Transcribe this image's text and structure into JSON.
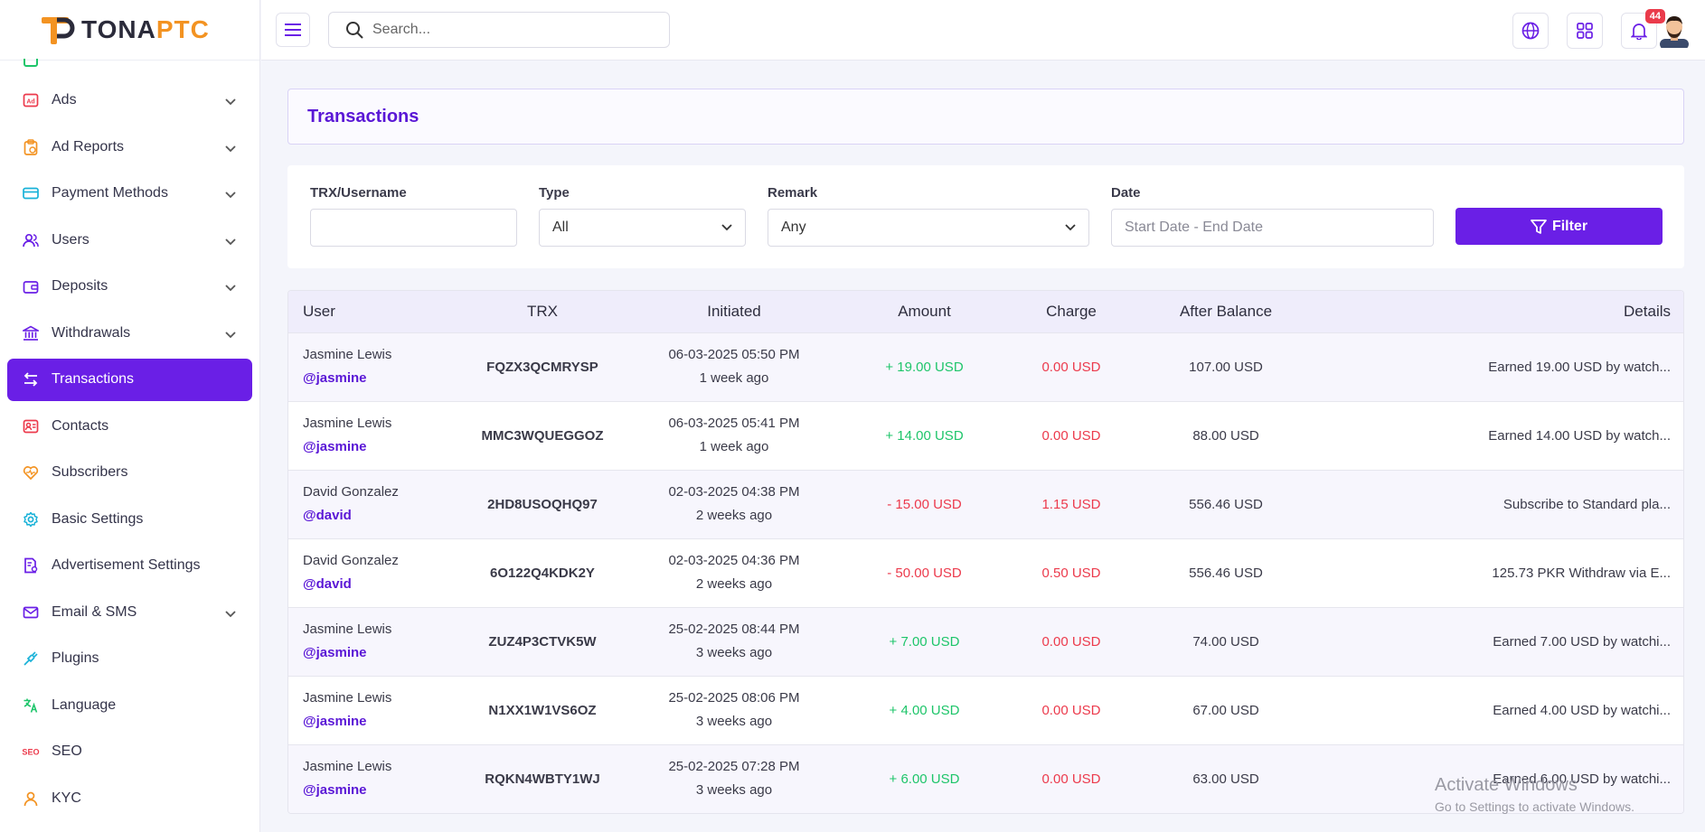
{
  "brand": {
    "part1": "TONA",
    "part2": "PTC",
    "accent": "#f39322"
  },
  "sidebar": {
    "items": [
      {
        "label": "Ads",
        "icon": "ad-icon",
        "color": "#ec3a4c",
        "chevron": true
      },
      {
        "label": "Ad Reports",
        "icon": "clipboard-icon",
        "color": "#f39322",
        "chevron": true
      },
      {
        "label": "Payment Methods",
        "icon": "credit-card-icon",
        "color": "#1ab2d8",
        "chevron": true
      },
      {
        "label": "Users",
        "icon": "users-icon",
        "color": "#6a1fe6",
        "chevron": true
      },
      {
        "label": "Deposits",
        "icon": "wallet-icon",
        "color": "#6a1fe6",
        "chevron": true
      },
      {
        "label": "Withdrawals",
        "icon": "bank-icon",
        "color": "#6a1fe6",
        "chevron": true
      },
      {
        "label": "Transactions",
        "icon": "arrows-icon",
        "color": "#ffffff",
        "chevron": false,
        "active": true
      },
      {
        "label": "Contacts",
        "icon": "contact-icon",
        "color": "#ec3a4c",
        "chevron": false
      },
      {
        "label": "Subscribers",
        "icon": "heart-icon",
        "color": "#f39322",
        "chevron": false
      },
      {
        "label": "Basic Settings",
        "icon": "gear-icon",
        "color": "#1ab2d8",
        "chevron": false
      },
      {
        "label": "Advertisement Settings",
        "icon": "doc-settings-icon",
        "color": "#6a1fe6",
        "chevron": false
      },
      {
        "label": "Email & SMS",
        "icon": "mail-icon",
        "color": "#6a1fe6",
        "chevron": true
      },
      {
        "label": "Plugins",
        "icon": "plug-icon",
        "color": "#1ab2d8",
        "chevron": false
      },
      {
        "label": "Language",
        "icon": "language-icon",
        "color": "#1ec56a",
        "chevron": false
      },
      {
        "label": "SEO",
        "icon": "seo-icon",
        "color": "#ec3a4c",
        "chevron": false
      },
      {
        "label": "KYC",
        "icon": "kyc-icon",
        "color": "#f39322",
        "chevron": false
      }
    ]
  },
  "topbar": {
    "search_placeholder": "Search...",
    "notification_count": "44"
  },
  "page": {
    "title": "Transactions"
  },
  "filters": {
    "trx_label": "TRX/Username",
    "trx_value": "",
    "type_label": "Type",
    "type_value": "All",
    "remark_label": "Remark",
    "remark_value": "Any",
    "date_label": "Date",
    "date_placeholder": "Start Date - End Date",
    "filter_button": "Filter"
  },
  "table": {
    "headers": [
      "User",
      "TRX",
      "Initiated",
      "Amount",
      "Charge",
      "After Balance",
      "Details"
    ],
    "rows": [
      {
        "name": "Jasmine Lewis",
        "username": "@jasmine",
        "trx": "FQZX3QCMRYSP",
        "date": "06-03-2025 05:50 PM",
        "ago": "1 week ago",
        "amount": "+ 19.00 USD",
        "amount_type": "pos",
        "charge": "0.00 USD",
        "balance": "107.00 USD",
        "details": "Earned 19.00 USD by watch..."
      },
      {
        "name": "Jasmine Lewis",
        "username": "@jasmine",
        "trx": "MMC3WQUEGGOZ",
        "date": "06-03-2025 05:41 PM",
        "ago": "1 week ago",
        "amount": "+ 14.00 USD",
        "amount_type": "pos",
        "charge": "0.00 USD",
        "balance": "88.00 USD",
        "details": "Earned 14.00 USD by watch..."
      },
      {
        "name": "David Gonzalez",
        "username": "@david",
        "trx": "2HD8USOQHQ97",
        "date": "02-03-2025 04:38 PM",
        "ago": "2 weeks ago",
        "amount": "- 15.00 USD",
        "amount_type": "neg",
        "charge": "1.15 USD",
        "balance": "556.46 USD",
        "details": "Subscribe to Standard pla..."
      },
      {
        "name": "David Gonzalez",
        "username": "@david",
        "trx": "6O122Q4KDK2Y",
        "date": "02-03-2025 04:36 PM",
        "ago": "2 weeks ago",
        "amount": "- 50.00 USD",
        "amount_type": "neg",
        "charge": "0.50 USD",
        "balance": "556.46 USD",
        "details": "125.73 PKR Withdraw via E..."
      },
      {
        "name": "Jasmine Lewis",
        "username": "@jasmine",
        "trx": "ZUZ4P3CTVK5W",
        "date": "25-02-2025 08:44 PM",
        "ago": "3 weeks ago",
        "amount": "+ 7.00 USD",
        "amount_type": "pos",
        "charge": "0.00 USD",
        "balance": "74.00 USD",
        "details": "Earned 7.00 USD by watchi..."
      },
      {
        "name": "Jasmine Lewis",
        "username": "@jasmine",
        "trx": "N1XX1W1VS6OZ",
        "date": "25-02-2025 08:06 PM",
        "ago": "3 weeks ago",
        "amount": "+ 4.00 USD",
        "amount_type": "pos",
        "charge": "0.00 USD",
        "balance": "67.00 USD",
        "details": "Earned 4.00 USD by watchi..."
      },
      {
        "name": "Jasmine Lewis",
        "username": "@jasmine",
        "trx": "RQKN4WBTY1WJ",
        "date": "25-02-2025 07:28 PM",
        "ago": "3 weeks ago",
        "amount": "+ 6.00 USD",
        "amount_type": "pos",
        "charge": "0.00 USD",
        "balance": "63.00 USD",
        "details": "Earned 6.00 USD by watchi..."
      }
    ]
  },
  "watermark": {
    "line1": "Activate Windows",
    "line2": "Go to Settings to activate Windows."
  }
}
